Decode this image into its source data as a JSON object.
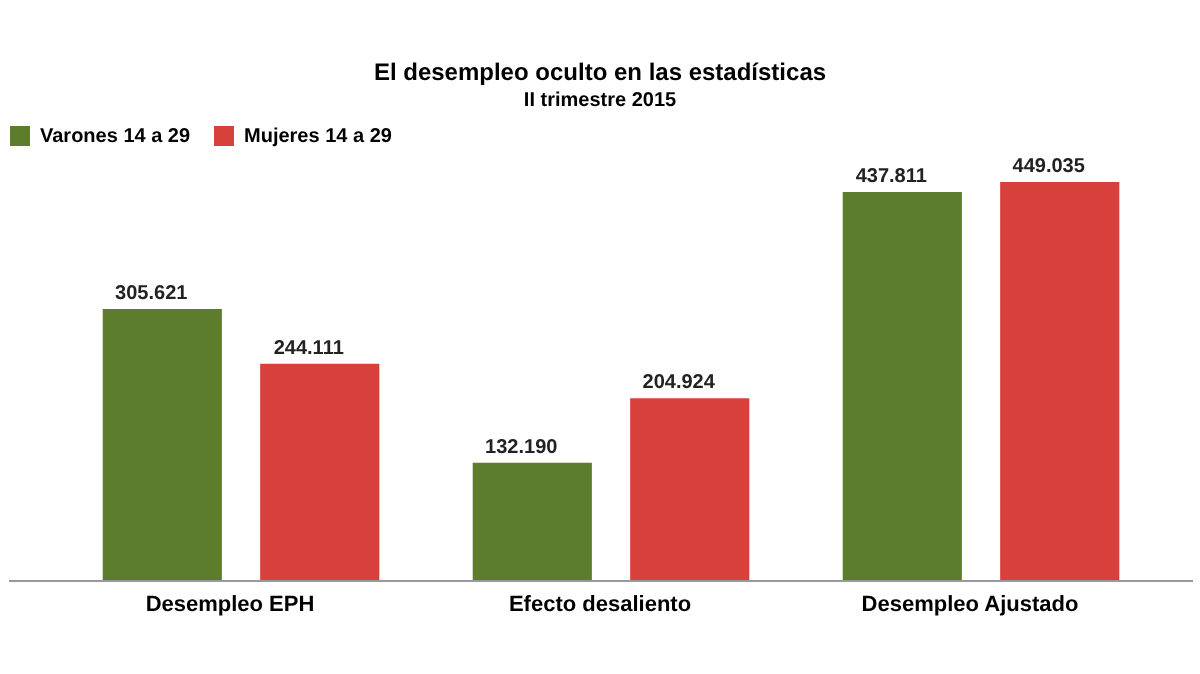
{
  "chart_data": {
    "type": "bar",
    "title": "El desempleo oculto en las estadísticas",
    "subtitle": "II trimestre 2015",
    "categories": [
      "Desempleo EPH",
      "Efecto desaliento",
      "Desempleo Ajustado"
    ],
    "series": [
      {
        "name": "Varones 14 a 29",
        "color": "#5e7d2c",
        "values": [
          305621,
          132190,
          437811
        ],
        "value_labels": [
          "305.621",
          "132.190",
          "437.811"
        ]
      },
      {
        "name": "Mujeres 14 a 29",
        "color": "#d8403c",
        "values": [
          244111,
          204924,
          449035
        ],
        "value_labels": [
          "244.111",
          "204.924",
          "449.035"
        ]
      }
    ],
    "legend": "top",
    "grid": false
  }
}
